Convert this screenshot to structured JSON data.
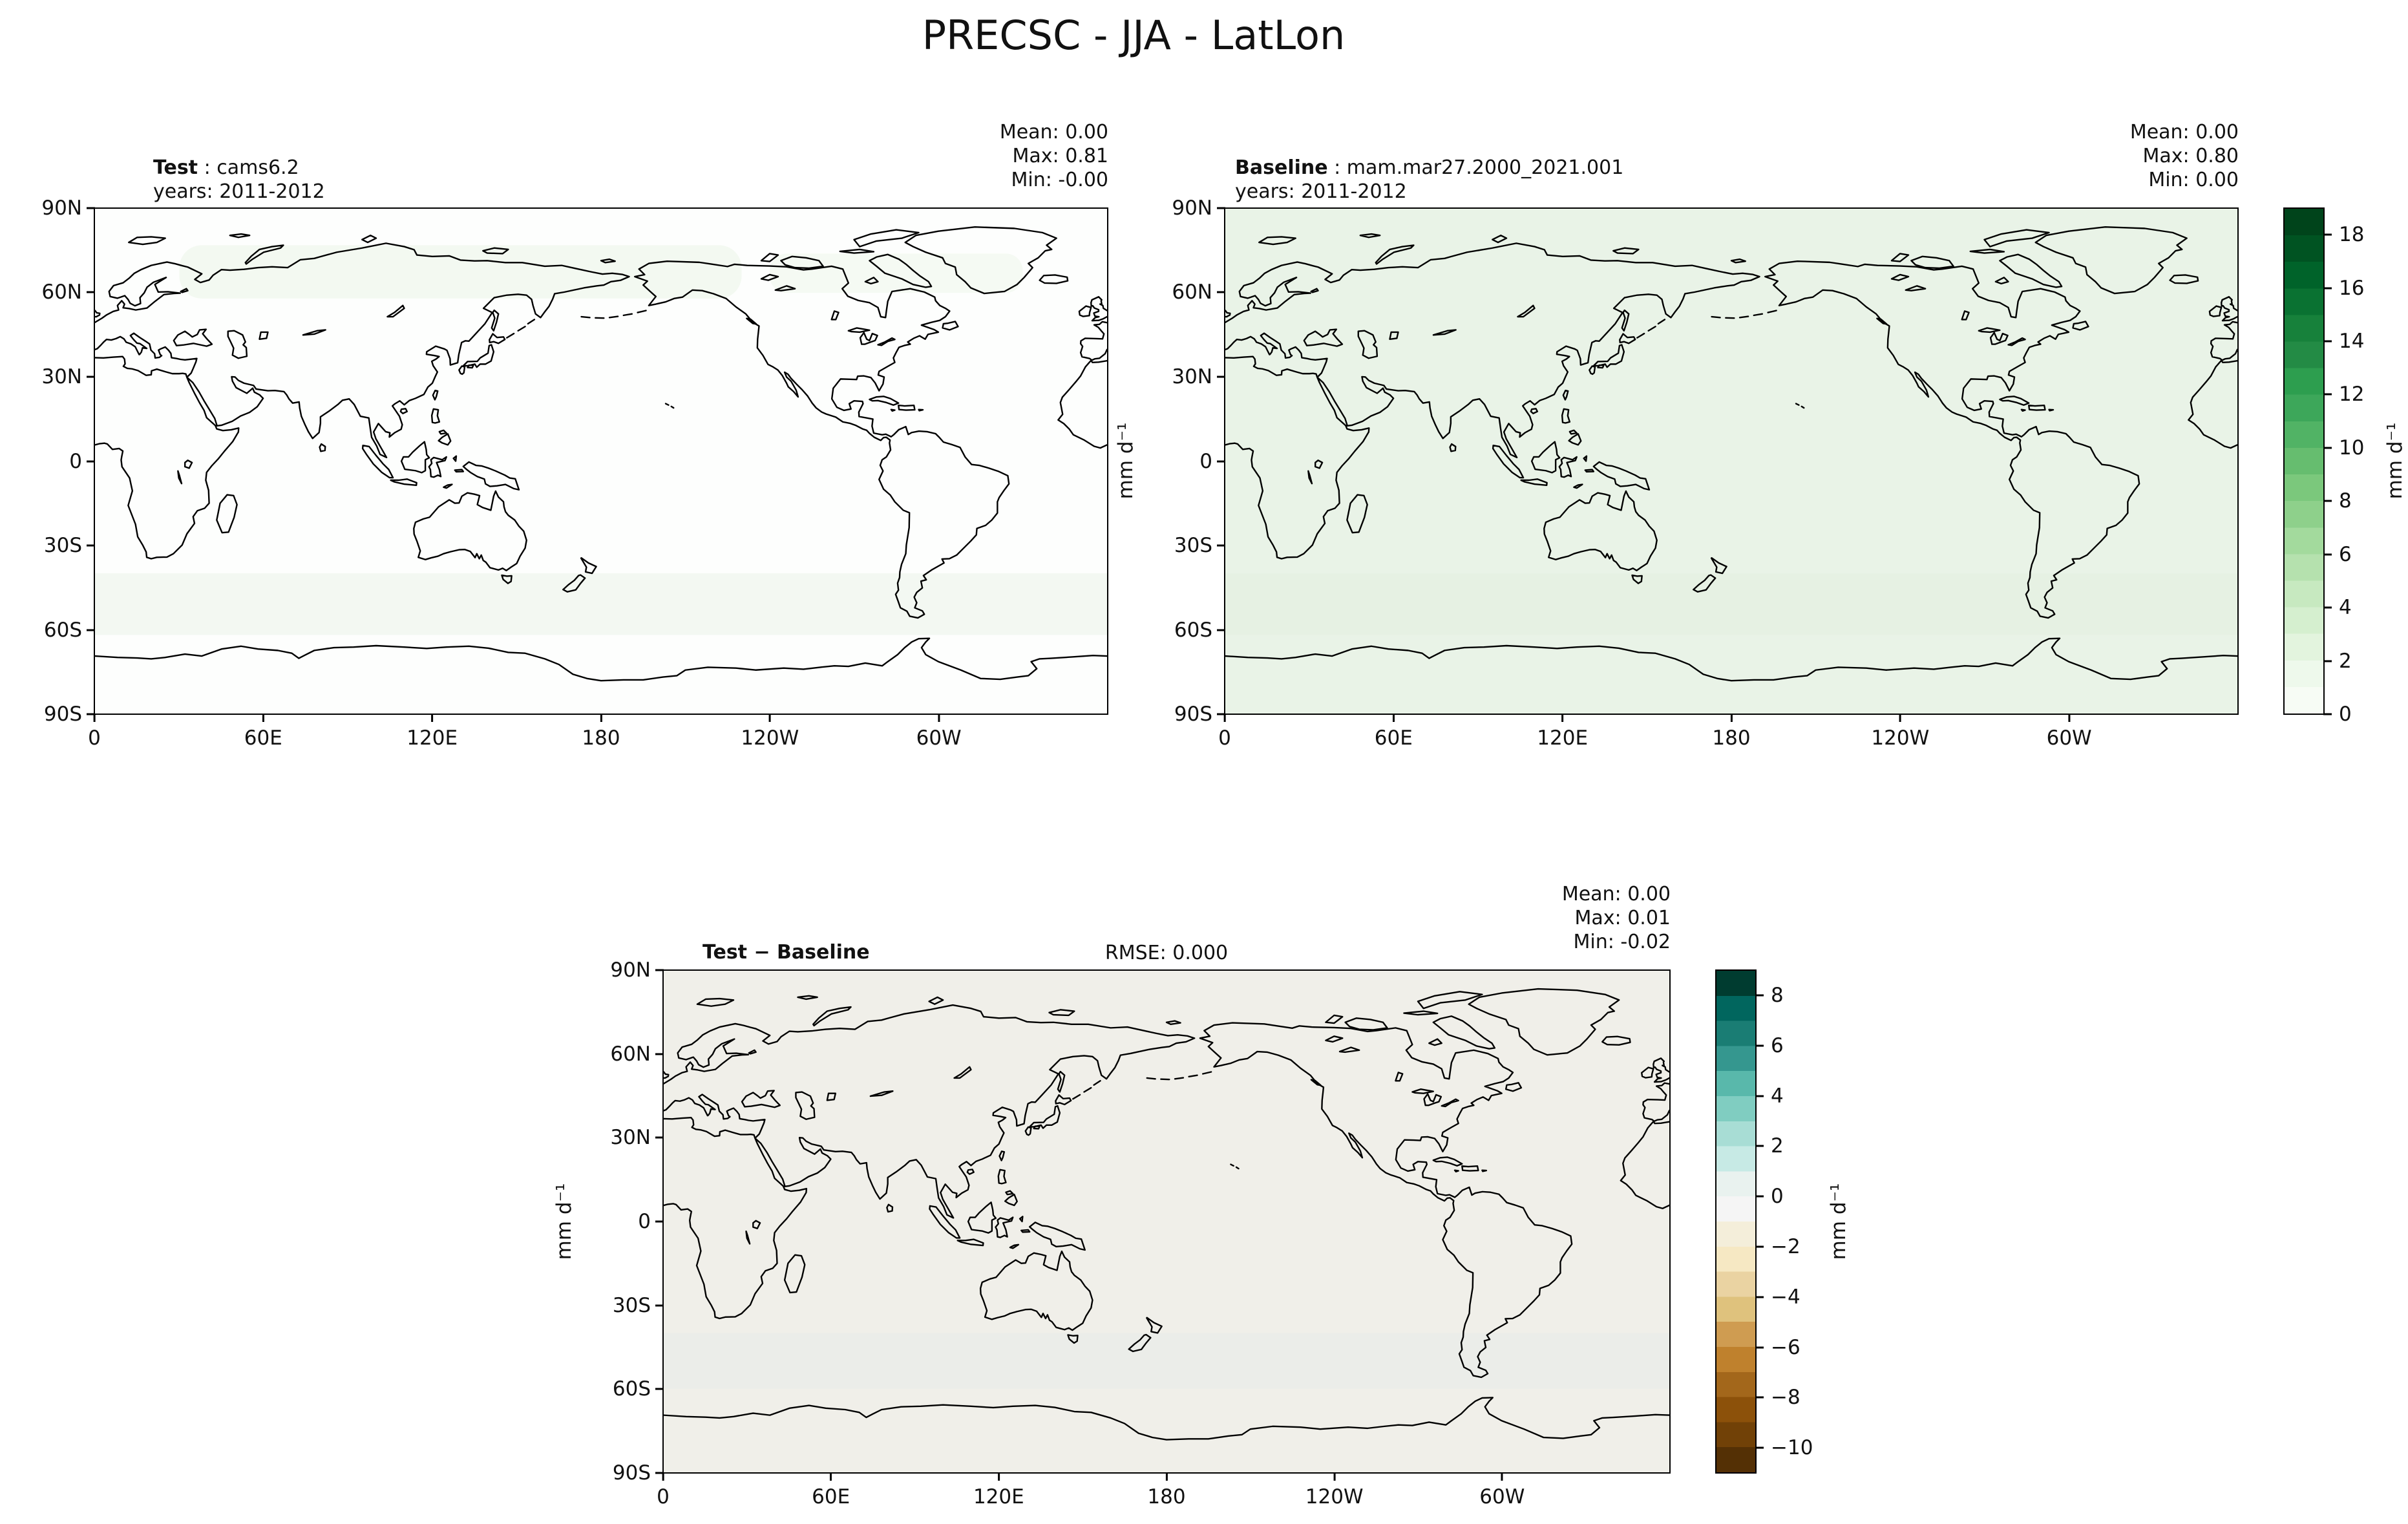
{
  "title": "PRECSC - JJA - LatLon",
  "panels": [
    {
      "name": "Test",
      "label_bold": "Test",
      "label_rest": " : cams6.2",
      "sub": "years: 2011-2012",
      "stats": [
        "Mean:  0.00",
        "Max:  0.81",
        "Min: -0.00"
      ]
    },
    {
      "name": "Baseline",
      "label_bold": "Baseline",
      "label_rest": " : mam.mar27.2000_2021.001",
      "sub": "years: 2011-2012",
      "stats": [
        "Mean:  0.00",
        "Max:  0.80",
        "Min:  0.00"
      ]
    },
    {
      "name": "Test minus Baseline",
      "label_bold": "Test − Baseline",
      "rmse": "RMSE: 0.000",
      "stats": [
        "Mean:  0.00",
        "Max:  0.01",
        "Min: -0.02"
      ]
    }
  ],
  "axes": {
    "lat": [
      "90N",
      "60N",
      "30N",
      "0",
      "30S",
      "60S",
      "90S"
    ],
    "lon": [
      "0",
      "60E",
      "120E",
      "180",
      "120W",
      "60W"
    ],
    "unit": "mm d⁻¹"
  },
  "colorbars": {
    "greens": {
      "vmin": 0,
      "vmax": 19,
      "unit": "mm d⁻¹",
      "ticks": [
        {
          "v": 18,
          "label": "18"
        },
        {
          "v": 16,
          "label": "16"
        },
        {
          "v": 14,
          "label": "14"
        },
        {
          "v": 12,
          "label": "12"
        },
        {
          "v": 10,
          "label": "10"
        },
        {
          "v": 8,
          "label": "8"
        },
        {
          "v": 6,
          "label": "6"
        },
        {
          "v": 4,
          "label": "4"
        },
        {
          "v": 2,
          "label": "2"
        },
        {
          "v": 0,
          "label": "0"
        }
      ],
      "colors": [
        "#f7fcf5",
        "#eef9ec",
        "#e3f4de",
        "#d5efcf",
        "#c7e9c0",
        "#b5e1ae",
        "#a3da9d",
        "#8ed08b",
        "#7bc87c",
        "#66bd6f",
        "#51b365",
        "#3da75a",
        "#2d9e4f",
        "#238b45",
        "#17813b",
        "#0a7232",
        "#00632a",
        "#005322",
        "#00441b"
      ]
    },
    "brbg": {
      "vmin": -11,
      "vmax": 9,
      "unit": "mm d⁻¹",
      "ticks": [
        {
          "v": 8,
          "label": "8"
        },
        {
          "v": 6,
          "label": "6"
        },
        {
          "v": 4,
          "label": "4"
        },
        {
          "v": 2,
          "label": "2"
        },
        {
          "v": 0,
          "label": "0"
        },
        {
          "v": -2,
          "label": "−2"
        },
        {
          "v": -4,
          "label": "−4"
        },
        {
          "v": -6,
          "label": "−6"
        },
        {
          "v": -8,
          "label": "−8"
        },
        {
          "v": -10,
          "label": "−10"
        }
      ],
      "colors": [
        "#543005",
        "#714107",
        "#8c510a",
        "#a3671b",
        "#bf812d",
        "#cf9c51",
        "#dfc27d",
        "#ead3a2",
        "#f6e8c3",
        "#f4eeda",
        "#f5f5f5",
        "#e9f2ef",
        "#c7eae5",
        "#a8ddd5",
        "#80cdc1",
        "#59b8ab",
        "#35978f",
        "#1a7d74",
        "#01665e",
        "#003c30"
      ]
    }
  },
  "chart_data": [
    {
      "type": "heatmap",
      "panel": "Test",
      "dataset": "cams6.2",
      "years": "2011-2012",
      "variable": "PRECSC",
      "season": "JJA",
      "projection": "LatLon",
      "units": "mm d⁻¹",
      "stats": {
        "mean": 0.0,
        "max": 0.81,
        "min": -0.0
      },
      "lon_range": [
        0,
        360
      ],
      "lat_range": [
        -90,
        90
      ],
      "colormap": "Greens",
      "value_range": [
        0,
        19
      ],
      "fill": "#fdfefd"
    },
    {
      "type": "heatmap",
      "panel": "Baseline",
      "dataset": "mam.mar27.2000_2021.001",
      "years": "2011-2012",
      "variable": "PRECSC",
      "season": "JJA",
      "projection": "LatLon",
      "units": "mm d⁻¹",
      "stats": {
        "mean": 0.0,
        "max": 0.8,
        "min": 0.0
      },
      "lon_range": [
        0,
        360
      ],
      "lat_range": [
        -90,
        90
      ],
      "colormap": "Greens",
      "value_range": [
        0,
        19
      ],
      "fill": "#e9f3e7"
    },
    {
      "type": "heatmap",
      "panel": "Test − Baseline",
      "rmse": 0.0,
      "variable": "PRECSC",
      "season": "JJA",
      "projection": "LatLon",
      "units": "mm d⁻¹",
      "stats": {
        "mean": 0.0,
        "max": 0.01,
        "min": -0.02
      },
      "lon_range": [
        0,
        360
      ],
      "lat_range": [
        -90,
        90
      ],
      "colormap": "BrBG",
      "value_range": [
        -11,
        9
      ],
      "fill": "#f0efe9"
    }
  ]
}
